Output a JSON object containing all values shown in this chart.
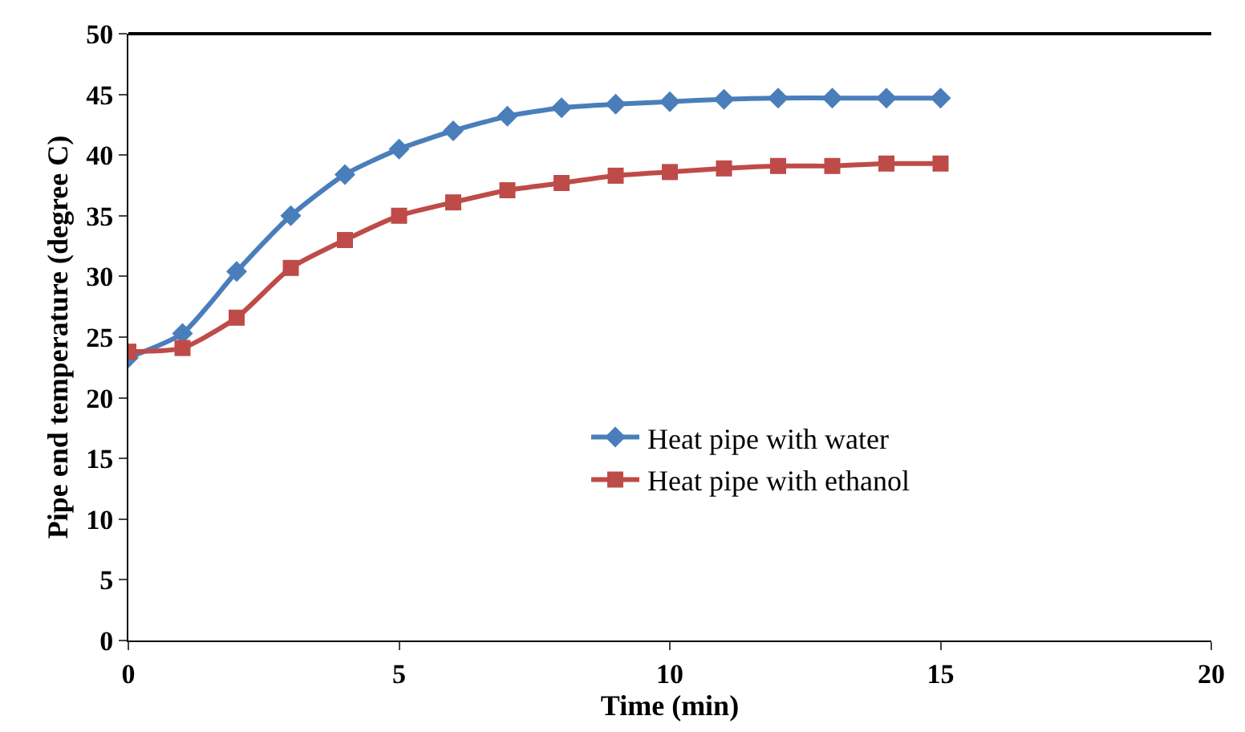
{
  "chart_data": {
    "type": "line",
    "xlabel": "Time (min)",
    "ylabel": "Pipe end temperature (degree C)",
    "x": [
      0,
      1,
      2,
      3,
      4,
      5,
      6,
      7,
      8,
      9,
      10,
      11,
      12,
      13,
      14,
      15
    ],
    "series": [
      {
        "name": "Heat pipe with water",
        "color": "#4a7ebb",
        "marker": "diamond",
        "values": [
          23.3,
          25.3,
          30.4,
          35,
          38.4,
          40.5,
          42,
          43.2,
          43.9,
          44.2,
          44.4,
          44.6,
          44.7,
          44.7,
          44.7,
          44.7
        ]
      },
      {
        "name": "Heat pipe with ethanol",
        "color": "#be4b48",
        "marker": "square",
        "values": [
          23.8,
          24.1,
          26.6,
          30.7,
          33,
          35,
          36.1,
          37.1,
          37.7,
          38.3,
          38.6,
          38.9,
          39.1,
          39.1,
          39.3,
          39.3
        ]
      }
    ],
    "xlim": [
      0,
      20
    ],
    "xticks": [
      0,
      5,
      10,
      15,
      20
    ],
    "ylim": [
      0,
      50
    ],
    "yticks": [
      0,
      5,
      10,
      15,
      20,
      25,
      30,
      35,
      40,
      45,
      50
    ],
    "legend": "bottom right",
    "line_style": "solid"
  }
}
